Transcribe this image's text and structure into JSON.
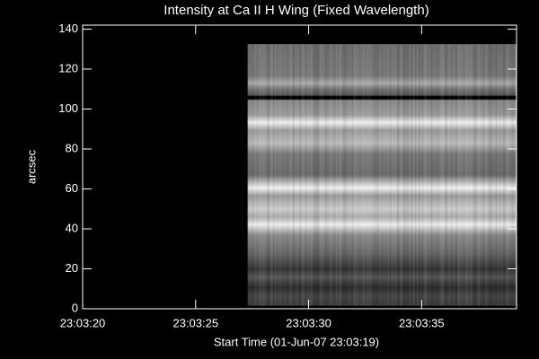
{
  "chart_data": {
    "type": "image",
    "title": "Intensity at Ca II H Wing (Fixed Wavelength)",
    "xlabel": "Start Time (01-Jun-07 23:03:19)",
    "ylabel": "arcsec",
    "xlim": [
      1,
      20.2
    ],
    "ylim": [
      0,
      142
    ],
    "xticks": [
      {
        "value": 1,
        "label": "23:03:20"
      },
      {
        "value": 6,
        "label": "23:03:25"
      },
      {
        "value": 11,
        "label": "23:03:30"
      },
      {
        "value": 16,
        "label": "23:03:35"
      }
    ],
    "yticks": [
      0,
      20,
      40,
      60,
      80,
      100,
      120,
      140
    ],
    "image_x": [
      8.3,
      20.2
    ],
    "image_y": [
      1.5,
      132.5
    ]
  }
}
